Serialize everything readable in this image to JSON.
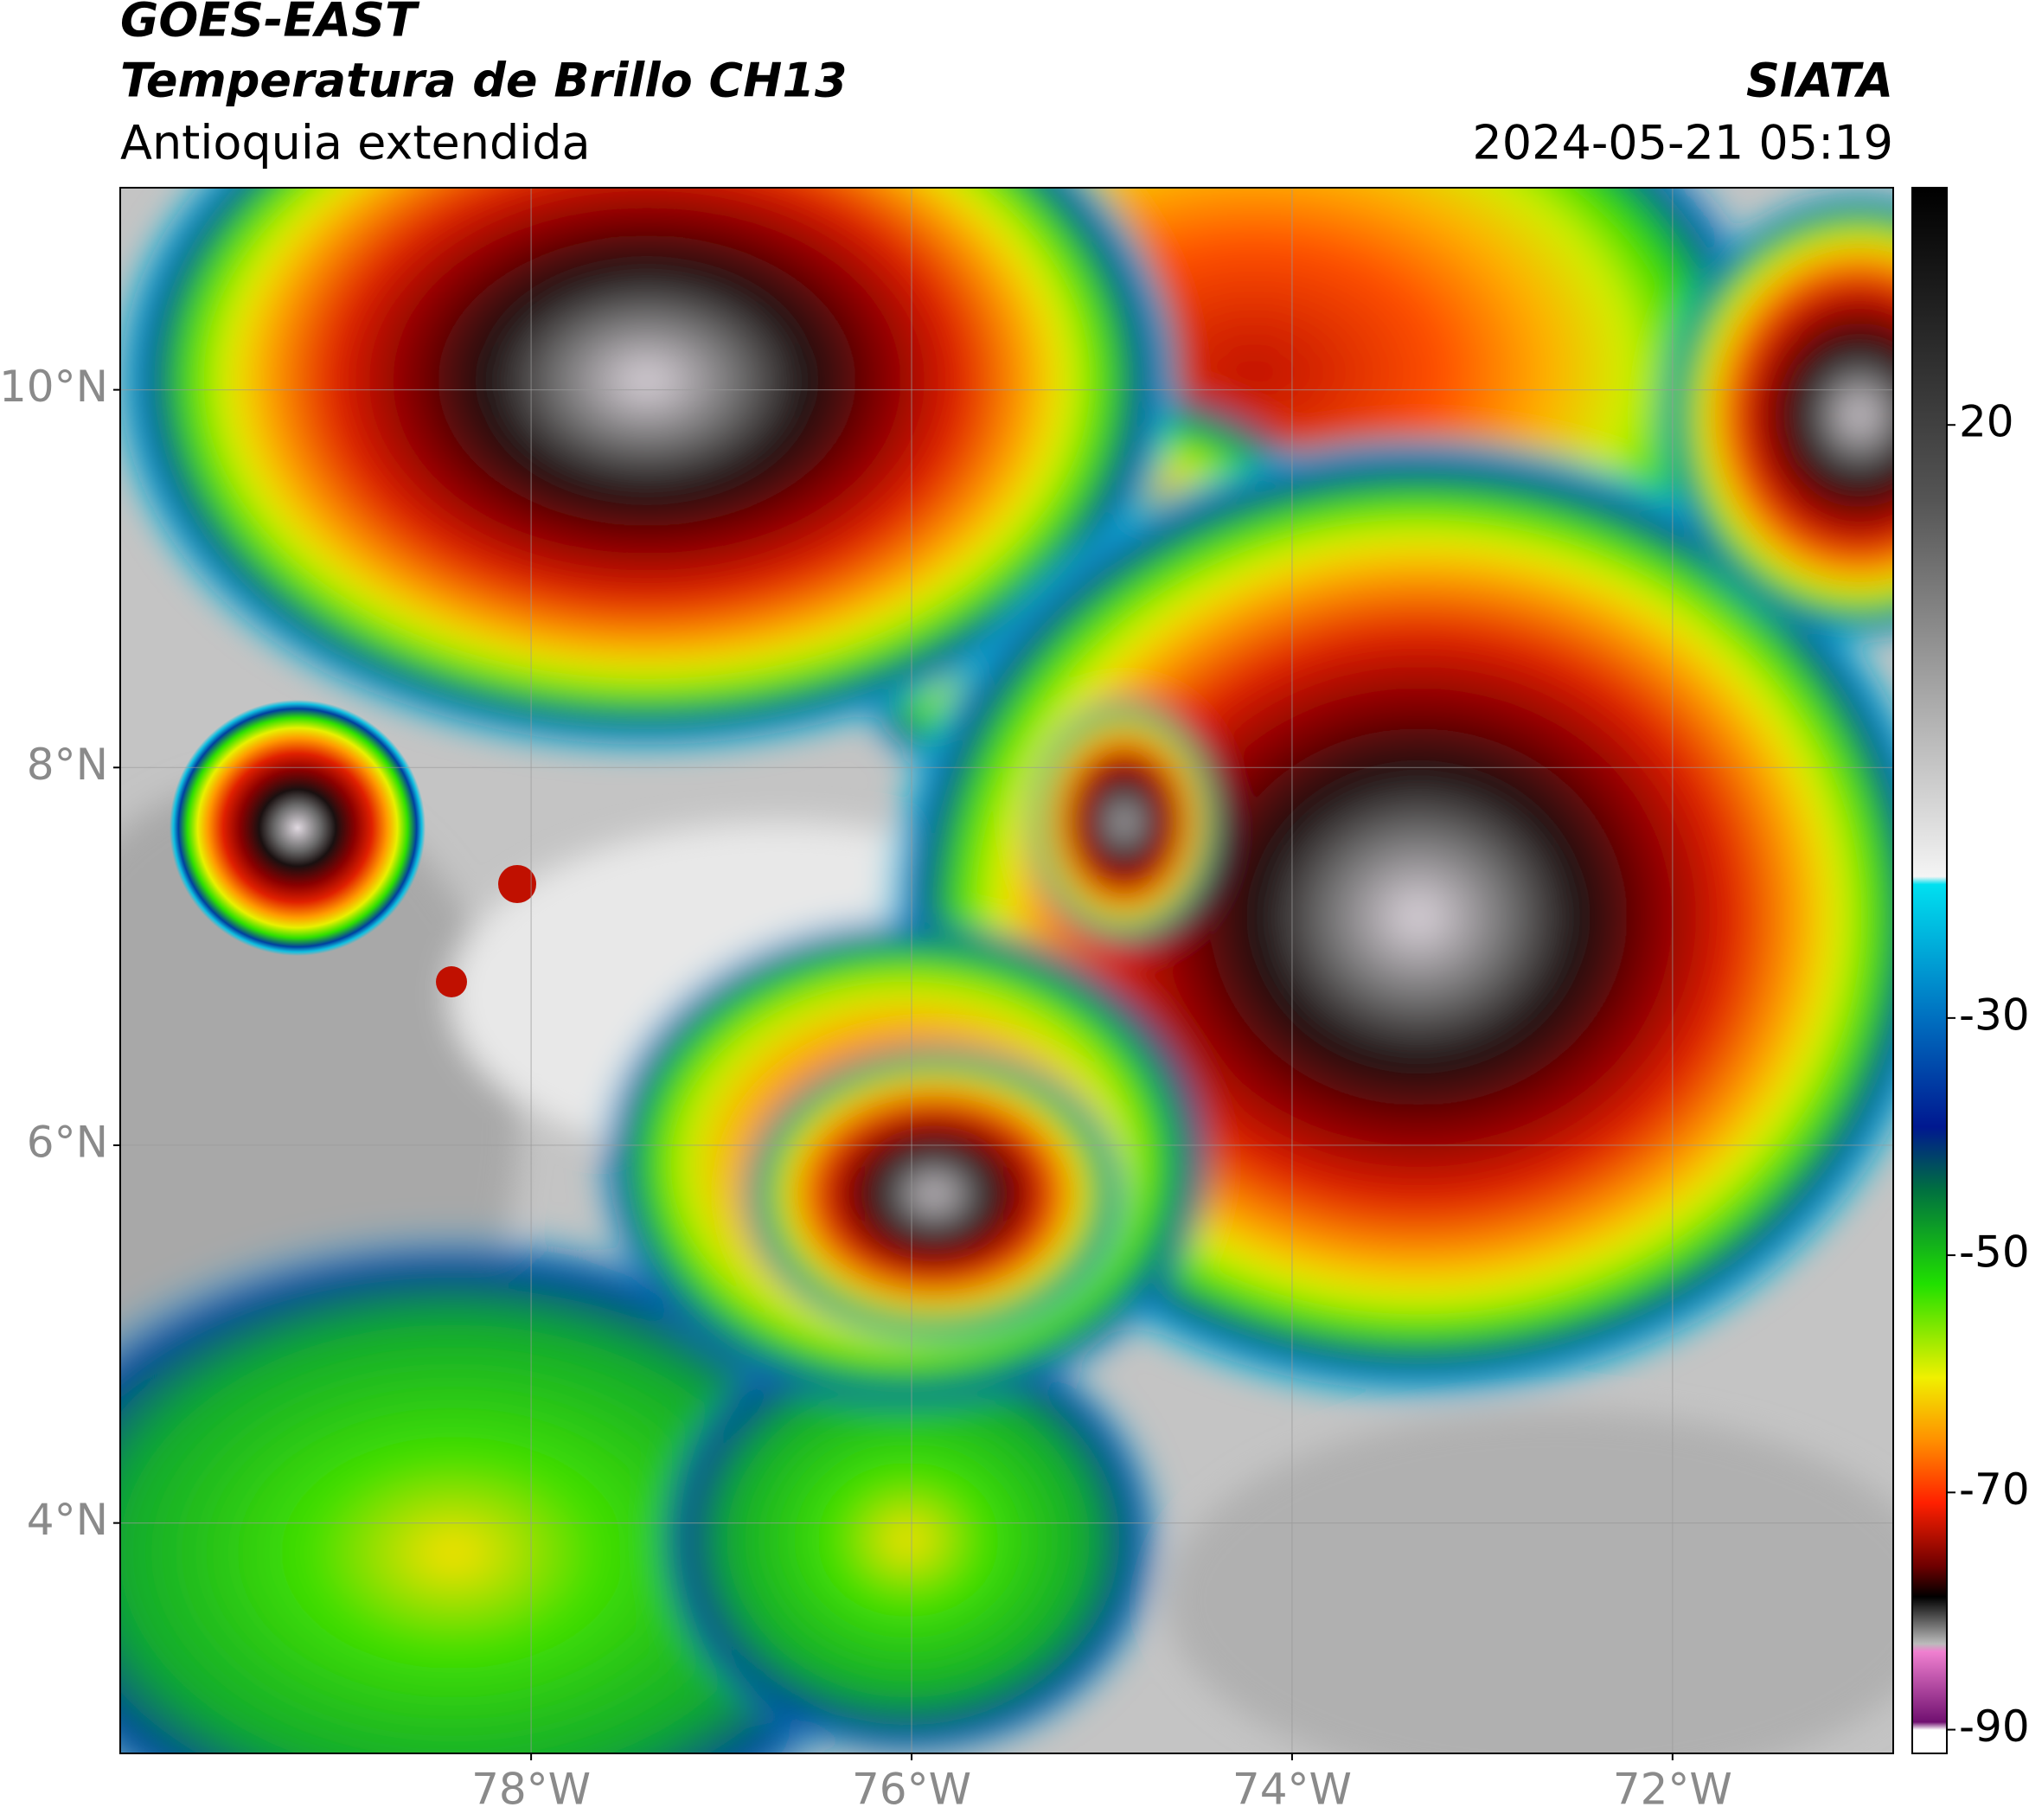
{
  "header": {
    "title": "GOES-EAST",
    "subtitle": "Temperatura de Brillo CH13",
    "region": "Antioquia extendida",
    "source": "SIATA",
    "datetime": "2024-05-21 05:19"
  },
  "map": {
    "xlim": [
      -80.16,
      -70.84
    ],
    "ylim": [
      2.78,
      11.07
    ],
    "xticks": [
      {
        "value": -78,
        "label": "78°W"
      },
      {
        "value": -76,
        "label": "76°W"
      },
      {
        "value": -74,
        "label": "74°W"
      },
      {
        "value": -72,
        "label": "72°W"
      }
    ],
    "yticks": [
      {
        "value": 4,
        "label": "4°N"
      },
      {
        "value": 6,
        "label": "6°N"
      },
      {
        "value": 8,
        "label": "8°N"
      },
      {
        "value": 10,
        "label": "10°N"
      }
    ],
    "grid": true
  },
  "colorbar": {
    "lim": [
      -92,
      40
    ],
    "ticks": [
      20,
      -30,
      -50,
      -70,
      -90
    ]
  }
}
